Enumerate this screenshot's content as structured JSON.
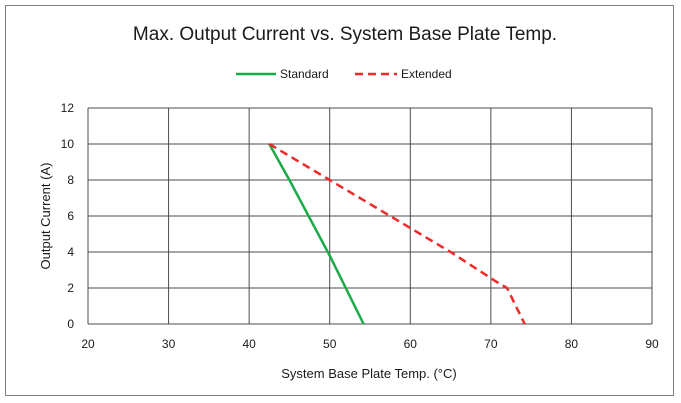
{
  "chart_data": {
    "type": "line",
    "title": "Max. Output Current vs. System Base Plate Temp.",
    "xlabel": "System Base Plate Temp. (°C)",
    "ylabel": "Output Current (A)",
    "xlim": [
      20,
      90
    ],
    "ylim": [
      0,
      12
    ],
    "xticks": [
      20,
      30,
      40,
      50,
      60,
      70,
      80,
      90
    ],
    "yticks": [
      0,
      2,
      4,
      6,
      8,
      10,
      12
    ],
    "grid": true,
    "legend_position": "top-center",
    "series": [
      {
        "name": "Standard",
        "style": "solid",
        "color": "#1aab48",
        "points": [
          [
            42.5,
            10
          ],
          [
            45,
            8
          ],
          [
            50,
            3.8
          ],
          [
            54.2,
            0
          ]
        ]
      },
      {
        "name": "Extended",
        "style": "dashed",
        "color": "#ee2a2a",
        "points": [
          [
            42.5,
            10
          ],
          [
            50,
            8
          ],
          [
            57.5,
            6
          ],
          [
            65,
            4
          ],
          [
            70.5,
            2.4
          ],
          [
            72,
            2
          ],
          [
            74.2,
            0
          ]
        ]
      }
    ]
  }
}
